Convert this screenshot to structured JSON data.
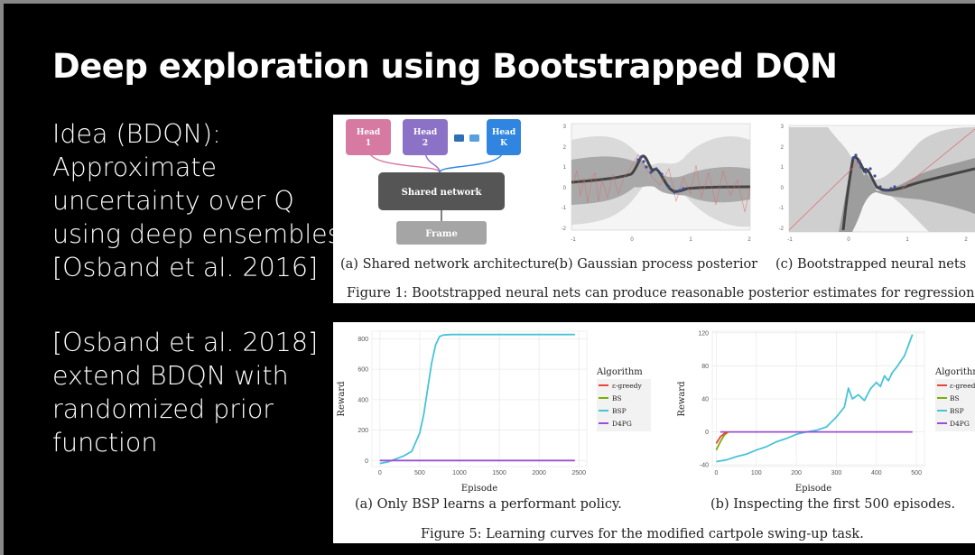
{
  "slide": {
    "title": "Deep exploration using Bootstrapped DQN",
    "para1": [
      "Idea (BDQN):",
      "Approximate",
      "uncertainty over Q",
      "using deep ensembles",
      "[Osband et al. 2016]"
    ],
    "para2": [
      "[Osband et al. 2018]",
      "extend BDQN with",
      "randomized prior",
      "function"
    ]
  },
  "figure1": {
    "arch": {
      "heads": [
        {
          "label1": "Head",
          "label2": "1",
          "color": "#d77aa2"
        },
        {
          "label1": "Head",
          "label2": "2",
          "color": "#8c72c6"
        },
        {
          "label1": "Head",
          "label2": "K",
          "color": "#2f85e0"
        }
      ],
      "shared": "Shared network",
      "frame": "Frame"
    },
    "sub_a": "(a) Shared network architecture",
    "sub_b": "(b) Gaussian process posterior",
    "sub_c": "(c) Bootstrapped neural nets",
    "caption": "Figure 1: Bootstrapped neural nets can produce reasonable posterior estimates for regression.",
    "gp_plot": {
      "xticks": [
        "-1",
        "0",
        "1",
        "2"
      ],
      "yticks": [
        "3",
        "2",
        "1",
        "0",
        "-1",
        "-2"
      ]
    },
    "nn_plot": {
      "xticks": [
        "-1",
        "0",
        "1",
        "2"
      ],
      "yticks": [
        "3",
        "2",
        "1",
        "0",
        "-1",
        "-2"
      ]
    }
  },
  "figure5": {
    "sub_a": "(a) Only BSP learns a performant policy.",
    "sub_b": "(b) Inspecting the first 500 episodes.",
    "caption": "Figure 5: Learning curves for the modified cartpole swing-up task.",
    "legend_title": "Algorithm",
    "legend": [
      {
        "name": "ε-greedy",
        "color": "#e8453c"
      },
      {
        "name": "BS",
        "color": "#7cae00"
      },
      {
        "name": "BSP",
        "color": "#47c4d8"
      },
      {
        "name": "D4PG",
        "color": "#9c4fd6"
      }
    ],
    "legend_b_title": "Algorithm",
    "legend_b": [
      "ε-greedy",
      "BS",
      "BSP",
      "D4PG"
    ]
  },
  "chart_data": [
    {
      "type": "line",
      "title": "",
      "xlabel": "Episode",
      "ylabel": "Reward",
      "xlim": [
        -100,
        2600
      ],
      "ylim": [
        -40,
        850
      ],
      "xticks": [
        0,
        500,
        1000,
        1500,
        2000,
        2500
      ],
      "yticks": [
        0,
        200,
        400,
        600,
        800
      ],
      "grid": true,
      "legend_placement": "right",
      "series": [
        {
          "name": "BSP",
          "x": [
            0,
            100,
            200,
            300,
            400,
            500,
            550,
            600,
            650,
            700,
            750,
            800,
            900,
            1000,
            1500,
            2000,
            2450
          ],
          "y": [
            -20,
            -10,
            10,
            30,
            60,
            180,
            300,
            470,
            640,
            760,
            815,
            825,
            828,
            828,
            828,
            828,
            828
          ]
        },
        {
          "name": "D4PG",
          "x": [
            0,
            2450
          ],
          "y": [
            0,
            0
          ]
        }
      ]
    },
    {
      "type": "line",
      "title": "",
      "xlabel": "Episode",
      "ylabel": "Reward",
      "xlim": [
        -10,
        520
      ],
      "ylim": [
        -42,
        122
      ],
      "xticks": [
        0,
        100,
        200,
        300,
        400,
        500
      ],
      "yticks": [
        -40,
        0,
        40,
        80,
        120
      ],
      "grid": true,
      "legend_placement": "right",
      "series": [
        {
          "name": "BSP",
          "x": [
            0,
            25,
            50,
            75,
            100,
            125,
            150,
            175,
            200,
            225,
            250,
            275,
            300,
            320,
            330,
            340,
            355,
            370,
            385,
            400,
            410,
            420,
            430,
            440,
            450,
            460,
            470,
            480,
            490
          ],
          "y": [
            -36,
            -34,
            -30,
            -27,
            -22,
            -18,
            -12,
            -8,
            -3,
            0,
            2,
            6,
            18,
            30,
            53,
            40,
            45,
            38,
            52,
            60,
            55,
            68,
            62,
            72,
            78,
            85,
            92,
            105,
            118
          ]
        },
        {
          "name": "D4PG",
          "x": [
            10,
            490
          ],
          "y": [
            0,
            0
          ]
        },
        {
          "name": "BS",
          "x": [
            0,
            10,
            20,
            30
          ],
          "y": [
            -22,
            -12,
            -4,
            0
          ]
        },
        {
          "name": "ε-greedy",
          "x": [
            0,
            10,
            20,
            30
          ],
          "y": [
            -14,
            -6,
            -2,
            0
          ]
        }
      ]
    }
  ]
}
